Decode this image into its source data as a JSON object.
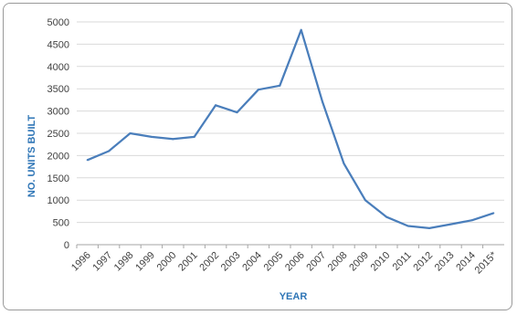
{
  "chart_data": {
    "type": "line",
    "title": "",
    "xlabel": "YEAR",
    "ylabel": "NO. UNITS BUILT",
    "categories": [
      "1996",
      "1997",
      "1998",
      "1999",
      "2000",
      "2001",
      "2002",
      "2003",
      "2004",
      "2005",
      "2006",
      "2007",
      "2008",
      "2009",
      "2010",
      "2011",
      "2012",
      "2013",
      "2014",
      "2015*"
    ],
    "series": [
      {
        "values": [
          1900,
          2100,
          2500,
          2420,
          2370,
          2420,
          3130,
          2970,
          3480,
          3570,
          4820,
          3200,
          1820,
          1000,
          620,
          420,
          370,
          460,
          550,
          710
        ]
      }
    ],
    "ylim": [
      0,
      5000
    ],
    "yticks": [
      0,
      500,
      1000,
      1500,
      2000,
      2500,
      3000,
      3500,
      4000,
      4500,
      5000
    ],
    "grid": "horizontal",
    "legend": "none",
    "colors": {
      "line": "#4a7ebb",
      "grid": "#d9d9d9",
      "axis_title": "#2e75b6"
    }
  }
}
